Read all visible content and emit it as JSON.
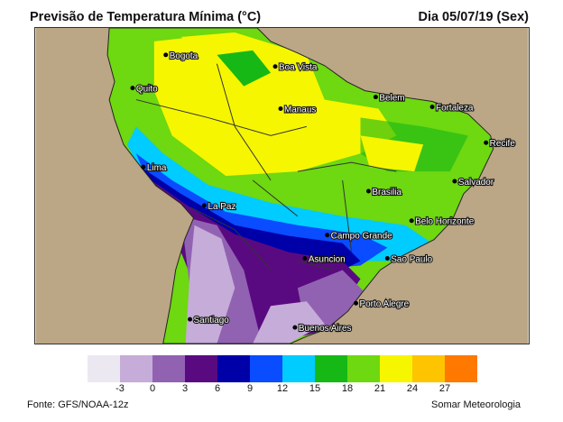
{
  "header": {
    "title": "Previsão de Temperatura Mínima (°C)",
    "date": "Dia 05/07/19 (Sex)"
  },
  "cities": [
    {
      "name": "Bogota"
    },
    {
      "name": "Boa Vista"
    },
    {
      "name": "Quito"
    },
    {
      "name": "Manaus"
    },
    {
      "name": "Belem"
    },
    {
      "name": "Fortaleza"
    },
    {
      "name": "Recife"
    },
    {
      "name": "Lima"
    },
    {
      "name": "Salvador"
    },
    {
      "name": "Brasilia"
    },
    {
      "name": "La Paz"
    },
    {
      "name": "Belo Horizonte"
    },
    {
      "name": "Campo Grande"
    },
    {
      "name": "Sao Paulo"
    },
    {
      "name": "Asuncion"
    },
    {
      "name": "Porto Alegre"
    },
    {
      "name": "Santiago"
    },
    {
      "name": "Buenos Aires"
    }
  ],
  "legend": {
    "colors": [
      "#ece8f2",
      "#c6acd8",
      "#9262b2",
      "#5a0a80",
      "#0000a8",
      "#0a4cff",
      "#00ccff",
      "#16b816",
      "#6ed810",
      "#f6f600",
      "#ffc400",
      "#ff7800"
    ],
    "ticks": [
      "-3",
      "0",
      "3",
      "6",
      "9",
      "12",
      "15",
      "18",
      "21",
      "24",
      "27"
    ]
  },
  "footer": {
    "source": "Fonte: GFS/NOAA-12z",
    "credit": "Somar Meteorologia"
  }
}
